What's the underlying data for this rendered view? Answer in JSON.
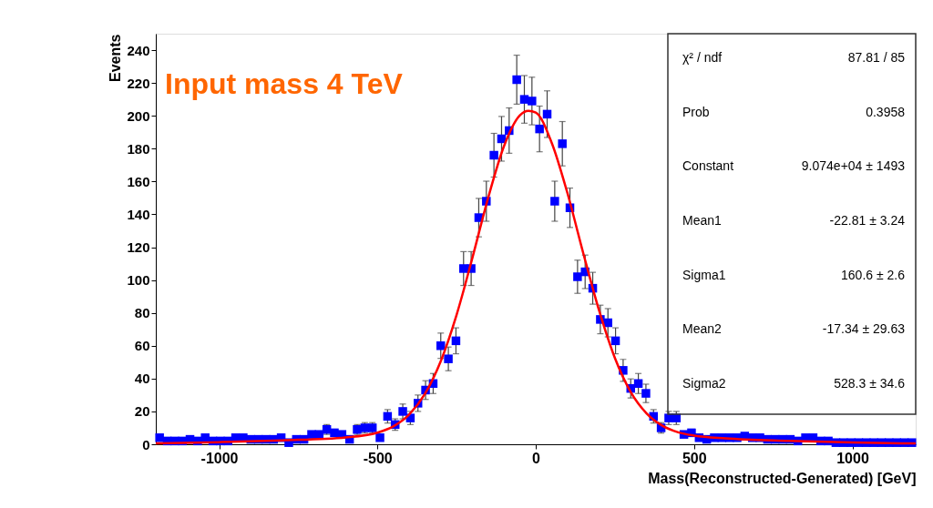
{
  "chart_data": {
    "type": "scatter",
    "xlabel": "Mass(Reconstructed-Generated) [GeV]",
    "ylabel": "Events",
    "xlim": [
      -1200,
      1200
    ],
    "ylim": [
      0,
      250
    ],
    "xticks": [
      {
        "value": -1000,
        "label": "-1000"
      },
      {
        "value": -500,
        "label": "-500"
      },
      0,
      500,
      {
        "value": 1000,
        "label": "1000"
      }
    ],
    "yticks": [
      0,
      20,
      40,
      60,
      80,
      100,
      120,
      140,
      160,
      180,
      200,
      220,
      240
    ],
    "grid": false,
    "x": [
      -1188,
      -1164,
      -1140,
      -1116,
      -1092,
      -1068,
      -1044,
      -1020,
      -996,
      -972,
      -948,
      -924,
      -900,
      -876,
      -852,
      -828,
      -804,
      -780,
      -756,
      -732,
      -708,
      -684,
      -660,
      -636,
      -612,
      -588,
      -564,
      -540,
      -516,
      -492,
      -468,
      -444,
      -420,
      -396,
      -372,
      -348,
      -324,
      -300,
      -276,
      -252,
      -228,
      -204,
      -180,
      -156,
      -132,
      -108,
      -84,
      -60,
      -36,
      -12,
      12,
      36,
      60,
      84,
      108,
      132,
      156,
      180,
      204,
      228,
      252,
      276,
      300,
      324,
      348,
      372,
      396,
      420,
      444,
      468,
      492,
      516,
      540,
      564,
      588,
      612,
      636,
      660,
      684,
      708,
      732,
      756,
      780,
      804,
      828,
      852,
      876,
      900,
      924,
      948,
      972,
      996,
      1020,
      1044,
      1068,
      1092,
      1116,
      1140,
      1164,
      1188
    ],
    "series": [
      {
        "color": "#0000ff",
        "marker": "square",
        "values": [
          4,
          2,
          2,
          2,
          3,
          2,
          4,
          2,
          2,
          2,
          4,
          4,
          3,
          3,
          3,
          3,
          4,
          1,
          3,
          3,
          6,
          6,
          9,
          7,
          6,
          3,
          9,
          10,
          10,
          4,
          17,
          12,
          20,
          16,
          25,
          33,
          37,
          60,
          52,
          63,
          107,
          107,
          138,
          148,
          176,
          186,
          191,
          222,
          210,
          209,
          192,
          201,
          148,
          183,
          144,
          102,
          105,
          95,
          76,
          74,
          63,
          45,
          34,
          37,
          31,
          17,
          10,
          16,
          16,
          6,
          7,
          4,
          3,
          4,
          4,
          4,
          4,
          5,
          4,
          4,
          3,
          3,
          3,
          3,
          2,
          4,
          4,
          2,
          2,
          1,
          1,
          1,
          1,
          1,
          1,
          1,
          1,
          1,
          1,
          1
        ],
        "errors": [
          null,
          null,
          null,
          null,
          null,
          null,
          null,
          null,
          null,
          null,
          null,
          null,
          null,
          null,
          null,
          null,
          null,
          null,
          null,
          null,
          null,
          null,
          3,
          null,
          null,
          null,
          3,
          3.2,
          3.2,
          null,
          4.1,
          3.5,
          4.5,
          4,
          5,
          5.7,
          6.1,
          7.7,
          7.2,
          7.9,
          10.3,
          10.3,
          11.7,
          12.2,
          13.3,
          13.6,
          13.8,
          14.9,
          14.5,
          14.5,
          13.9,
          14.2,
          12.2,
          13.5,
          12,
          10.1,
          10.2,
          9.7,
          8.7,
          8.6,
          7.9,
          6.7,
          5.8,
          6.1,
          5.6,
          4.1,
          3.2,
          4,
          4,
          null,
          null,
          null,
          null,
          null,
          null,
          null,
          null,
          null,
          null,
          null,
          null,
          null,
          null,
          null,
          null,
          null,
          null,
          null,
          null,
          null,
          null,
          null,
          null,
          null,
          null,
          null,
          null,
          null,
          null,
          null
        ]
      },
      {
        "type": "line",
        "color": "#ff0000",
        "line_style": "solid",
        "x": [
          -1200,
          -1000,
          -800,
          -600,
          -500,
          -450,
          -400,
          -350,
          -300,
          -250,
          -200,
          -150,
          -100,
          -50,
          -23,
          0,
          50,
          100,
          150,
          200,
          250,
          300,
          350,
          400,
          450,
          500,
          600,
          800,
          1000,
          1200
        ],
        "values": [
          0.6,
          1.3,
          2.4,
          4.2,
          7.1,
          10.9,
          18.1,
          30.7,
          50.6,
          78.8,
          113.6,
          150.3,
          181.7,
          200.3,
          203,
          202,
          183.8,
          153,
          116.4,
          81.5,
          52.5,
          31.8,
          18.8,
          11.3,
          7.3,
          5.3,
          3.6,
          2.1,
          1.1,
          0.5
        ]
      }
    ],
    "annotations": [
      "Input mass 4 TeV",
      "χ² / ndf",
      "87.81 / 85",
      "Prob",
      "0.3958",
      "Constant",
      "9.074e+04 ± 1493",
      "Mean1",
      "-22.81 ± 3.24",
      "Sigma1",
      "160.6 ± 2.6",
      "Mean2",
      "-17.34 ± 29.63",
      "Sigma2",
      "528.3 ± 34.6"
    ]
  }
}
